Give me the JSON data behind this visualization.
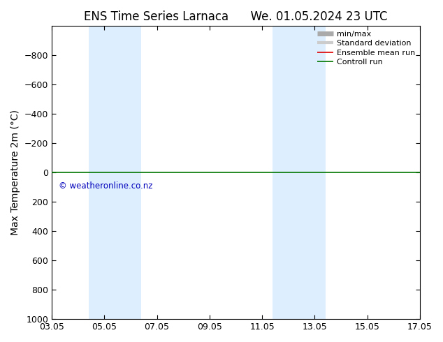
{
  "title_left": "ENS Time Series Larnaca",
  "title_right": "We. 01.05.2024 23 UTC",
  "ylabel": "Max Temperature 2m (°C)",
  "ylim": [
    1000,
    -1000
  ],
  "yticks": [
    -800,
    -600,
    -400,
    -200,
    0,
    200,
    400,
    600,
    800,
    1000
  ],
  "xtick_labels": [
    "03.05",
    "05.05",
    "07.05",
    "09.05",
    "11.05",
    "13.05",
    "15.05",
    "17.05"
  ],
  "xtick_positions": [
    0,
    2,
    4,
    6,
    8,
    10,
    12,
    14
  ],
  "xlim": [
    0,
    14
  ],
  "shaded_regions": [
    {
      "xmin": 1.4,
      "xmax": 3.4
    },
    {
      "xmin": 8.4,
      "xmax": 10.4
    }
  ],
  "shade_color": "#ddeeff",
  "green_line_y": 0,
  "green_line_color": "#007700",
  "red_line_color": "#dd0000",
  "watermark": "© weatheronline.co.nz",
  "watermark_color": "#0000bb",
  "watermark_y_data": 60,
  "legend_items": [
    {
      "label": "min/max",
      "color": "#aaaaaa",
      "lw": 5,
      "style": "line"
    },
    {
      "label": "Standard deviation",
      "color": "#cccccc",
      "lw": 3,
      "style": "line"
    },
    {
      "label": "Ensemble mean run",
      "color": "#dd0000",
      "lw": 1.2,
      "style": "line"
    },
    {
      "label": "Controll run",
      "color": "#007700",
      "lw": 1.2,
      "style": "line"
    }
  ],
  "background_color": "#ffffff",
  "title_fontsize": 12,
  "axis_label_fontsize": 10,
  "tick_fontsize": 9,
  "legend_fontsize": 8
}
